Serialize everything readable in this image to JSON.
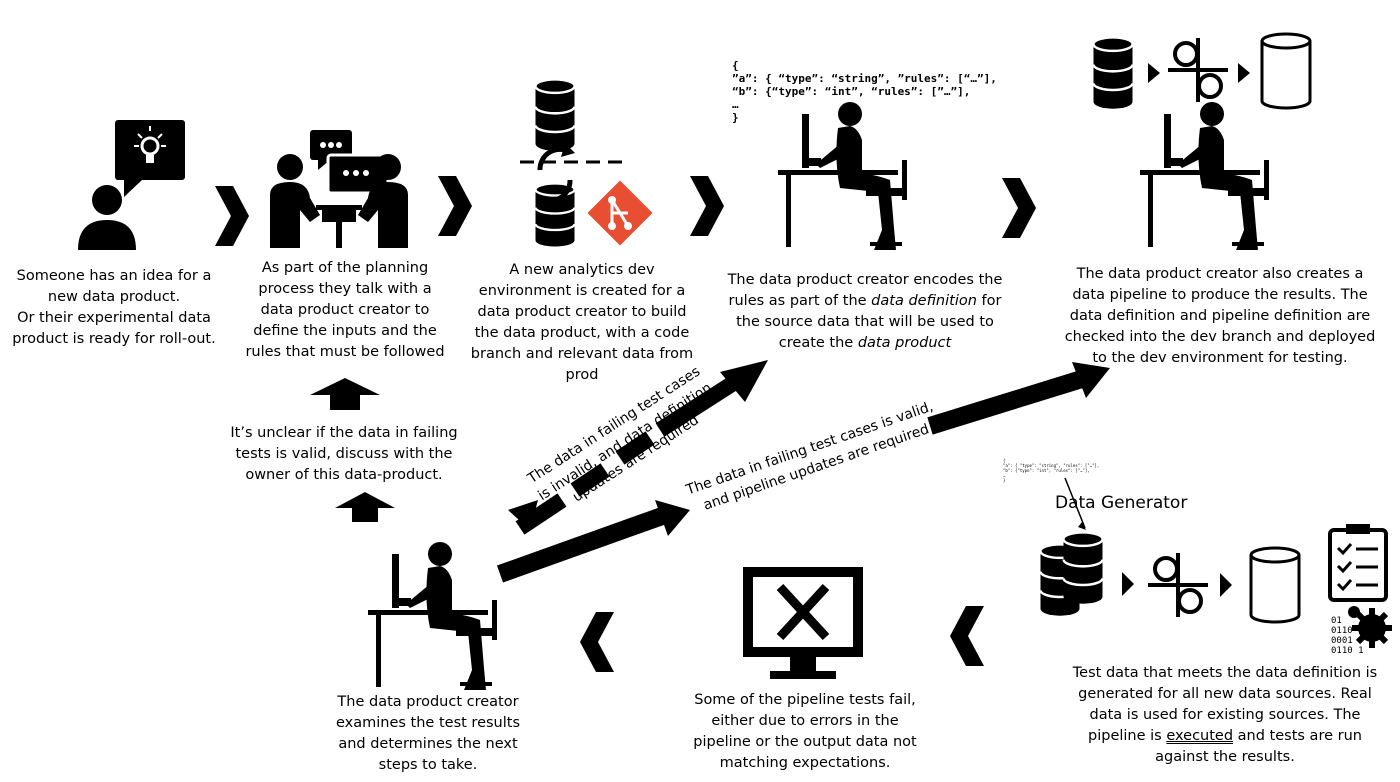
{
  "steps": {
    "idea": {
      "lines": [
        "Someone has an idea for a",
        "new data product.",
        "Or their experimental data",
        "product is ready for roll-out."
      ]
    },
    "planning": {
      "lines": [
        "As part of the planning",
        "process they talk with a",
        "data product creator to",
        "define the inputs and the",
        "rules that must be followed"
      ]
    },
    "environment": {
      "lines": [
        "A new analytics dev",
        "environment is created for a",
        "data product creator to build",
        "the data product, with a code",
        "branch and relevant data from",
        "prod"
      ]
    },
    "encode": {
      "line1": "The data product creator encodes the",
      "line2_pre": "rules as part of the ",
      "line2_em": "data definition",
      "line2_post": " for",
      "line3": "the source data that will be used to",
      "line4_pre": "create the ",
      "line4_em": "data product"
    },
    "pipeline": {
      "lines": [
        "The data product creator also creates a",
        "data pipeline to produce the results.  The",
        "data definition and pipeline definition are",
        "checked into the dev branch and deployed",
        "to the dev environment for testing."
      ]
    },
    "testdata": {
      "line1": "Test data that meets the data definition is",
      "line2": "generated for all new data sources.  Real",
      "line3": "data is used for existing sources.  The",
      "line4_pre": "pipeline is ",
      "line4_u": "executed",
      "line4_post": " and tests are run",
      "line5": "against the results."
    },
    "fail": {
      "lines": [
        "Some of the pipeline tests fail,",
        "either due to errors in the",
        "pipeline or the output data not",
        "matching expectations."
      ]
    },
    "examine": {
      "lines": [
        "The data product creator",
        "examines the test results",
        "and determines the next",
        "steps to take."
      ]
    },
    "unclear": {
      "lines": [
        "It’s unclear if the data in failing",
        "tests is valid, discuss with the",
        "owner of this data-product."
      ]
    }
  },
  "branches": {
    "invalid": [
      "The data in failing test cases",
      "is invalid, and data definition",
      "updates are required"
    ],
    "valid": [
      "The data in failing test cases is valid,",
      "and pipeline updates are required"
    ]
  },
  "code_snippet": [
    "{",
    "”a”: { “type”: “string”, ”rules”: [“…”],",
    "“b”: {“type”: “int”, “rules”: [”…”],",
    "…",
    "}"
  ],
  "tiny_snippet": [
    "{",
    "\"a\": { \"type\": \"string\", \"rules\": [\"…\"],",
    "\"b\": {\"type\": \"int\", \"rules\": [\"…\"],",
    "…",
    "}"
  ],
  "data_generator_label": "Data Generator",
  "binary": [
    "01",
    "0110",
    "0001",
    "0110 1"
  ]
}
